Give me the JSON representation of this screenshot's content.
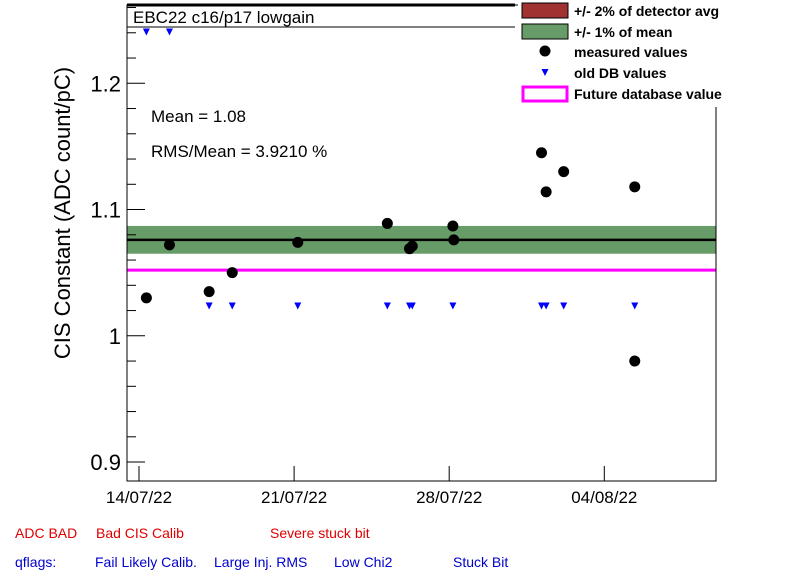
{
  "chart_data": {
    "type": "scatter",
    "title": "EBC22 c16/p17 lowgain",
    "ylabel": "CIS Constant (ADC count/pC)",
    "ylim": [
      0.885,
      1.262
    ],
    "xlim": [
      "2022-07-13T11:00",
      "2022-08-09T01:00"
    ],
    "ytick_values": [
      0.9,
      1.0,
      1.1,
      1.2
    ],
    "ytick_labels": [
      "0.9",
      "1",
      "1.1",
      "1.2"
    ],
    "xtick_dates": [
      "2022-07-14",
      "2022-07-21",
      "2022-07-28",
      "2022-08-04"
    ],
    "xtick_labels": [
      "14/07/22",
      "21/07/22",
      "28/07/22",
      "04/08/22"
    ],
    "mean_line": 1.076,
    "band_1pct": [
      1.065,
      1.087
    ],
    "future_db_value": 1.052,
    "stats": {
      "mean_text": "Mean = 1.08",
      "rms_text": "RMS/Mean = 3.9210 %"
    },
    "legend": {
      "placement": "top-right",
      "entries": [
        {
          "label": "+/- 2% of detector avg",
          "kind": "box",
          "color": "#a03232"
        },
        {
          "label": "+/- 1% of mean",
          "kind": "box",
          "color": "#679b67"
        },
        {
          "label": "measured values",
          "kind": "dot",
          "color": "#000000"
        },
        {
          "label": "old DB values",
          "kind": "tri",
          "color": "#0000ff"
        },
        {
          "label": "Future database value",
          "kind": "line",
          "color": "#ff00ff"
        }
      ]
    },
    "series": [
      {
        "name": "measured values",
        "points": [
          [
            "2022-07-14T08:00",
            1.03
          ],
          [
            "2022-07-15T09:00",
            1.072
          ],
          [
            "2022-07-17T04:00",
            1.035
          ],
          [
            "2022-07-18T05:00",
            1.05
          ],
          [
            "2022-07-21T04:00",
            1.074
          ],
          [
            "2022-07-25T05:00",
            1.089
          ],
          [
            "2022-07-26T05:00",
            1.069
          ],
          [
            "2022-07-26T08:00",
            1.071
          ],
          [
            "2022-07-28T04:00",
            1.087
          ],
          [
            "2022-07-28T05:00",
            1.076
          ],
          [
            "2022-08-01T04:00",
            1.145
          ],
          [
            "2022-08-01T09:00",
            1.114
          ],
          [
            "2022-08-02T04:00",
            1.13
          ],
          [
            "2022-08-05T09:00",
            1.118
          ],
          [
            "2022-08-05T09:00",
            0.98
          ]
        ]
      },
      {
        "name": "old DB values",
        "points": [
          [
            "2022-07-14T08:00",
            1.241
          ],
          [
            "2022-07-15T09:00",
            1.241
          ],
          [
            "2022-07-17T04:00",
            1.024
          ],
          [
            "2022-07-18T05:00",
            1.024
          ],
          [
            "2022-07-21T04:00",
            1.024
          ],
          [
            "2022-07-25T05:00",
            1.024
          ],
          [
            "2022-07-26T05:00",
            1.024
          ],
          [
            "2022-07-26T08:00",
            1.024
          ],
          [
            "2022-07-28T04:00",
            1.024
          ],
          [
            "2022-08-01T04:00",
            1.024
          ],
          [
            "2022-08-01T09:00",
            1.024
          ],
          [
            "2022-08-02T04:00",
            1.024
          ],
          [
            "2022-08-05T09:00",
            1.024
          ]
        ]
      }
    ]
  },
  "flags": {
    "adc_bad": "ADC BAD",
    "bad_cis_calib": "Bad CIS Calib",
    "severe_stuck_bit": "Severe stuck bit",
    "qflags": "qflags:",
    "fail_likely_calib": "Fail Likely Calib.",
    "large_inj_rms": "Large Inj. RMS",
    "low_chi2": "Low Chi2",
    "stuck_bit": "Stuck Bit"
  }
}
